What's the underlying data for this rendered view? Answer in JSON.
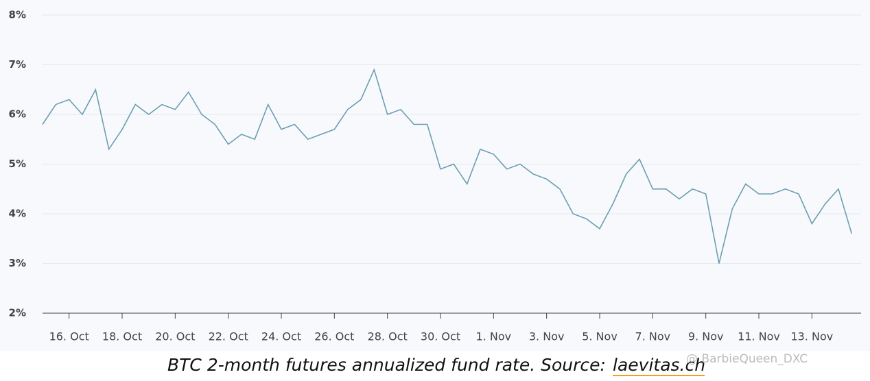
{
  "chart_data": {
    "type": "line",
    "caption": "BTC 2-month futures annualized fund rate. Source:",
    "source": "laevitas.ch",
    "watermark": "@ BarbieQueen_DXC",
    "categories": [
      null,
      null,
      "16. Oct",
      null,
      null,
      null,
      "18. Oct",
      null,
      null,
      null,
      "20. Oct",
      null,
      null,
      null,
      "22. Oct",
      null,
      null,
      null,
      "24. Oct",
      null,
      null,
      null,
      "26. Oct",
      null,
      null,
      null,
      "28. Oct",
      null,
      null,
      null,
      "30. Oct",
      null,
      null,
      null,
      "1. Nov",
      null,
      null,
      null,
      "3. Nov",
      null,
      null,
      null,
      "5. Nov",
      null,
      null,
      null,
      "7. Nov",
      null,
      null,
      null,
      "9. Nov",
      null,
      null,
      null,
      "11. Nov",
      null,
      null,
      null,
      "13. Nov",
      null,
      null,
      null
    ],
    "series": [
      {
        "name": "BTC 2-month futures annualized fund rate",
        "color": "#6a9fb0",
        "values": [
          5.8,
          6.2,
          6.3,
          6.0,
          6.5,
          5.3,
          5.7,
          6.2,
          6.0,
          6.2,
          6.1,
          6.45,
          6.0,
          5.8,
          5.4,
          5.6,
          5.5,
          6.2,
          5.7,
          5.8,
          5.5,
          5.6,
          5.7,
          6.1,
          6.3,
          6.9,
          6.0,
          6.1,
          5.8,
          5.8,
          4.9,
          5.0,
          4.6,
          5.3,
          5.2,
          4.9,
          5.0,
          4.8,
          4.7,
          4.5,
          4.0,
          3.9,
          3.7,
          4.2,
          4.8,
          5.1,
          4.5,
          4.5,
          4.3,
          4.5,
          4.4,
          3.0,
          4.1,
          4.6,
          4.4,
          4.4,
          4.5,
          4.4,
          3.8,
          4.2,
          4.5,
          3.6
        ]
      }
    ],
    "ylim": [
      2,
      8
    ],
    "yticks": [
      {
        "value": 2,
        "label": "2%"
      },
      {
        "value": 3,
        "label": "3%"
      },
      {
        "value": 4,
        "label": "4%"
      },
      {
        "value": 5,
        "label": "5%"
      },
      {
        "value": 6,
        "label": "6%"
      },
      {
        "value": 7,
        "label": "7%"
      },
      {
        "value": 8,
        "label": "8%"
      }
    ],
    "grid": true
  }
}
